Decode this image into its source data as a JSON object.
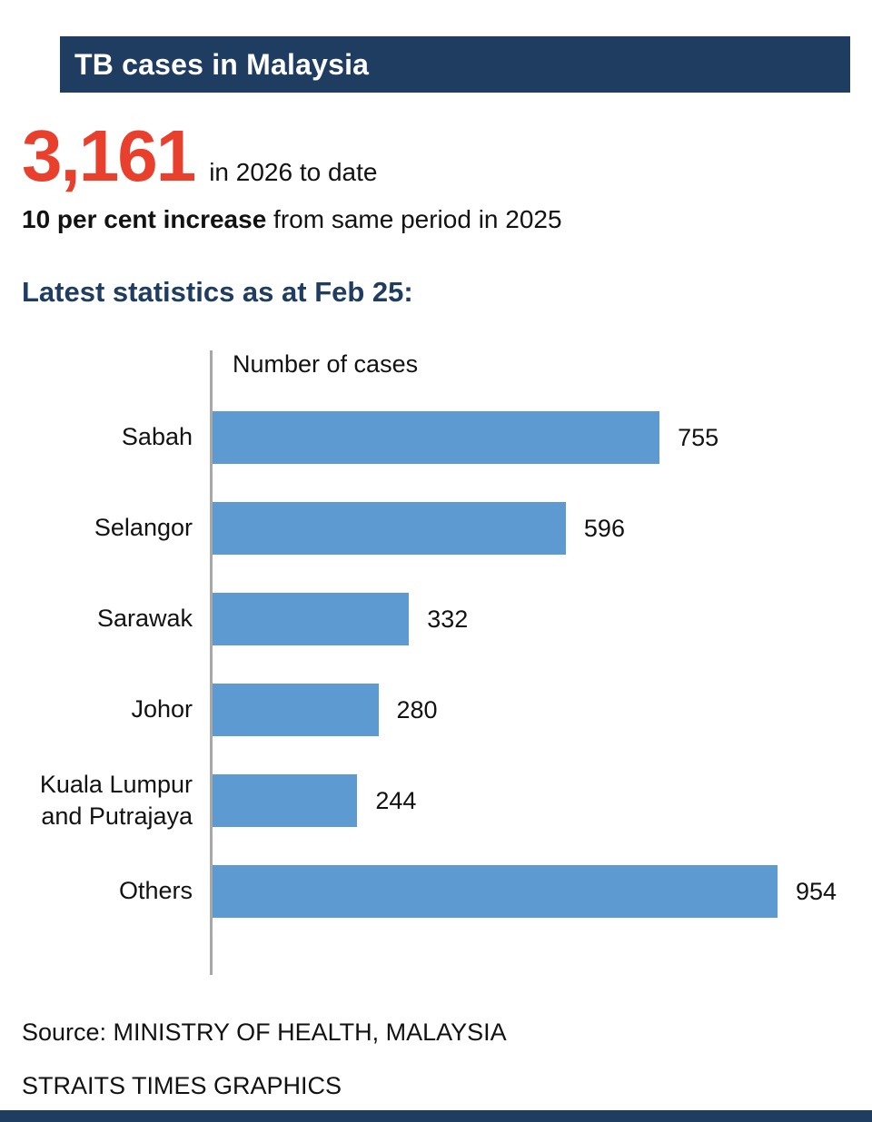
{
  "header": {
    "title": "TB cases in Malaysia"
  },
  "stats": {
    "big_number": "3,161",
    "big_number_suffix": "in 2026 to date",
    "increase_bold": "10 per cent increase",
    "increase_rest": " from same period in 2025",
    "subtitle": "Latest statistics as at Feb 25:"
  },
  "chart_data": {
    "type": "bar",
    "orientation": "horizontal",
    "axis_label": "Number of cases",
    "categories": [
      "Sabah",
      "Selangor",
      "Sarawak",
      "Johor",
      "Kuala Lumpur and Putrajaya",
      "Others"
    ],
    "values": [
      755,
      596,
      332,
      280,
      244,
      954
    ],
    "xlim": [
      0,
      1000
    ],
    "grid": false,
    "legend": "none",
    "bar_color": "#5d9ad2"
  },
  "footer": {
    "source": "Source: MINISTRY OF HEALTH, MALAYSIA",
    "credit": "STRAITS TIMES GRAPHICS"
  },
  "colors": {
    "navy": "#1f3c61",
    "red": "#e8402c",
    "bar_blue": "#5d9ad2",
    "axis_gray": "#a8a8a8"
  }
}
